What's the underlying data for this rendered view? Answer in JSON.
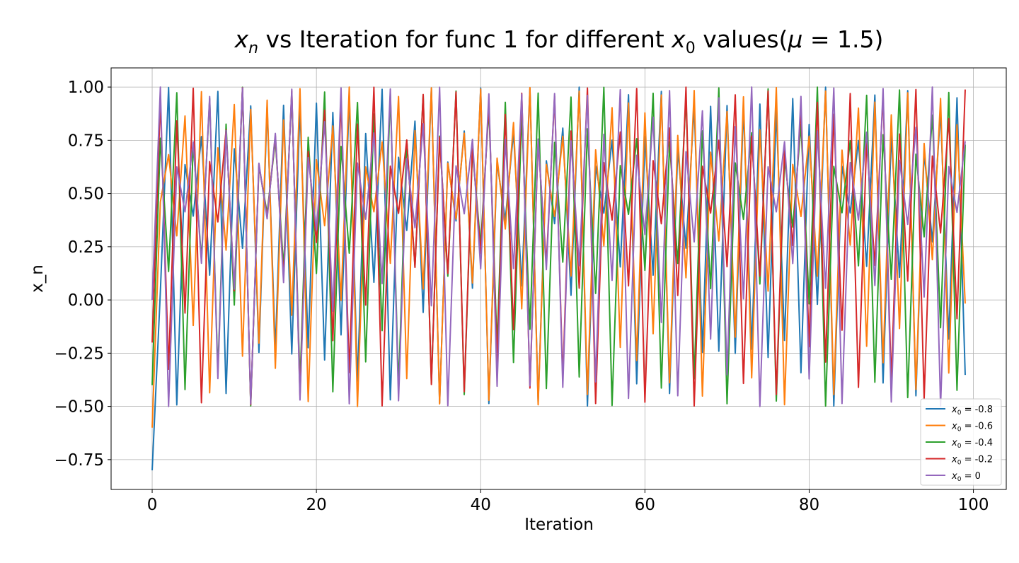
{
  "chart_data": {
    "type": "line",
    "title_parts": {
      "x_main": "x",
      "x_sub_n": "n",
      "middle": " vs Iteration for func 1 for different ",
      "x_main2": "x",
      "x_sub_0": "0",
      "values_text": " values(",
      "mu_symbol": "μ",
      "equals": " = ",
      "mu_value": "1.5",
      "close_paren": ")"
    },
    "xlabel": "Iteration",
    "ylabel": "x_n",
    "xlim": [
      -5,
      104
    ],
    "ylim": [
      -0.89,
      1.09
    ],
    "x_ticks": [
      0,
      20,
      40,
      60,
      80,
      100
    ],
    "x_tick_labels": [
      "0",
      "20",
      "40",
      "60",
      "80",
      "100"
    ],
    "y_ticks": [
      -0.75,
      -0.5,
      -0.25,
      0.0,
      0.25,
      0.5,
      0.75,
      1.0
    ],
    "y_tick_labels": [
      "−0.75",
      "−0.50",
      "−0.25",
      "0.00",
      "0.25",
      "0.50",
      "0.75",
      "1.00"
    ],
    "grid": true,
    "legend_position": "bottom-right",
    "mu": 1.5,
    "series": [
      {
        "legend_symbol": "x",
        "legend_sub": "0",
        "legend_rest": " = -0.8",
        "x0": -0.8,
        "color": "#1f77b4"
      },
      {
        "legend_symbol": "x",
        "legend_sub": "0",
        "legend_rest": " = -0.6",
        "x0": -0.6,
        "color": "#ff7f0e"
      },
      {
        "legend_symbol": "x",
        "legend_sub": "0",
        "legend_rest": " = -0.4",
        "x0": -0.4,
        "color": "#2ca02c"
      },
      {
        "legend_symbol": "x",
        "legend_sub": "0",
        "legend_rest": " = -0.2",
        "x0": -0.2,
        "color": "#d62728"
      },
      {
        "legend_symbol": "x",
        "legend_sub": "0",
        "legend_rest": " = 0",
        "x0": 0,
        "color": "#9467bd"
      }
    ],
    "iterations": 100
  }
}
